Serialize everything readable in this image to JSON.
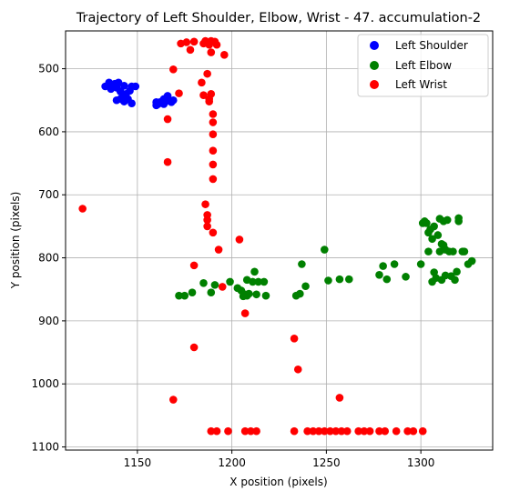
{
  "chart_data": {
    "type": "scatter",
    "title": "Trajectory of Left Shoulder, Elbow, Wrist - 47. accumulation-2",
    "xlabel": "X position (pixels)",
    "ylabel": "Y position (pixels)",
    "xlim": [
      1112,
      1338
    ],
    "ylim": [
      1105,
      440
    ],
    "y_inverted": true,
    "grid": true,
    "legend_position": "top-right",
    "x_ticks": [
      1150,
      1200,
      1250,
      1300
    ],
    "y_ticks": [
      500,
      600,
      700,
      800,
      900,
      1000,
      1100
    ],
    "series": [
      {
        "name": "Left Shoulder",
        "color": "#0000ff",
        "points": [
          [
            1133,
            528
          ],
          [
            1135,
            522
          ],
          [
            1136,
            532
          ],
          [
            1137,
            526
          ],
          [
            1138,
            524
          ],
          [
            1139,
            530
          ],
          [
            1140,
            522
          ],
          [
            1141,
            536
          ],
          [
            1139,
            550
          ],
          [
            1141,
            548
          ],
          [
            1142,
            545
          ],
          [
            1143,
            552
          ],
          [
            1143,
            527
          ],
          [
            1144,
            540
          ],
          [
            1145,
            548
          ],
          [
            1146,
            535
          ],
          [
            1147,
            528
          ],
          [
            1147,
            555
          ],
          [
            1149,
            528
          ],
          [
            1160,
            558
          ],
          [
            1160,
            553
          ],
          [
            1161,
            556
          ],
          [
            1162,
            553
          ],
          [
            1164,
            548
          ],
          [
            1164,
            556
          ],
          [
            1165,
            552
          ],
          [
            1166,
            543
          ],
          [
            1167,
            550
          ],
          [
            1168,
            553
          ],
          [
            1169,
            550
          ]
        ]
      },
      {
        "name": "Left Elbow",
        "color": "#008000",
        "points": [
          [
            1172,
            860
          ],
          [
            1175,
            860
          ],
          [
            1179,
            855
          ],
          [
            1185,
            840
          ],
          [
            1189,
            855
          ],
          [
            1191,
            843
          ],
          [
            1199,
            838
          ],
          [
            1203,
            848
          ],
          [
            1205,
            852
          ],
          [
            1206,
            861
          ],
          [
            1207,
            858
          ],
          [
            1208,
            860
          ],
          [
            1208,
            835
          ],
          [
            1209,
            857
          ],
          [
            1211,
            838
          ],
          [
            1212,
            822
          ],
          [
            1213,
            858
          ],
          [
            1214,
            838
          ],
          [
            1217,
            838
          ],
          [
            1218,
            860
          ],
          [
            1234,
            860
          ],
          [
            1236,
            857
          ],
          [
            1237,
            810
          ],
          [
            1239,
            845
          ],
          [
            1249,
            787
          ],
          [
            1251,
            836
          ],
          [
            1257,
            834
          ],
          [
            1262,
            834
          ],
          [
            1278,
            827
          ],
          [
            1280,
            813
          ],
          [
            1282,
            834
          ],
          [
            1286,
            810
          ],
          [
            1292,
            830
          ],
          [
            1300,
            810
          ],
          [
            1301,
            745
          ],
          [
            1302,
            742
          ],
          [
            1303,
            745
          ],
          [
            1304,
            760
          ],
          [
            1304,
            790
          ],
          [
            1305,
            755
          ],
          [
            1306,
            770
          ],
          [
            1306,
            838
          ],
          [
            1307,
            823
          ],
          [
            1307,
            750
          ],
          [
            1308,
            832
          ],
          [
            1309,
            764
          ],
          [
            1310,
            738
          ],
          [
            1310,
            790
          ],
          [
            1311,
            778
          ],
          [
            1311,
            835
          ],
          [
            1312,
            780
          ],
          [
            1312,
            742
          ],
          [
            1313,
            828
          ],
          [
            1313,
            787
          ],
          [
            1314,
            740
          ],
          [
            1315,
            790
          ],
          [
            1316,
            829
          ],
          [
            1317,
            790
          ],
          [
            1318,
            835
          ],
          [
            1319,
            822
          ],
          [
            1320,
            737
          ],
          [
            1320,
            742
          ],
          [
            1322,
            790
          ],
          [
            1323,
            790
          ],
          [
            1325,
            810
          ],
          [
            1327,
            805
          ]
        ]
      },
      {
        "name": "Left Wrist",
        "color": "#ff0000",
        "points": [
          [
            1121,
            722
          ],
          [
            1166,
            580
          ],
          [
            1166,
            648
          ],
          [
            1169,
            501
          ],
          [
            1169,
            1025
          ],
          [
            1172,
            539
          ],
          [
            1173,
            460
          ],
          [
            1176,
            458
          ],
          [
            1178,
            470
          ],
          [
            1180,
            457
          ],
          [
            1180,
            812
          ],
          [
            1180,
            942
          ],
          [
            1184,
            522
          ],
          [
            1185,
            542
          ],
          [
            1185,
            460
          ],
          [
            1186,
            456
          ],
          [
            1186,
            715
          ],
          [
            1187,
            732
          ],
          [
            1187,
            740
          ],
          [
            1187,
            750
          ],
          [
            1187,
            508
          ],
          [
            1188,
            462
          ],
          [
            1188,
            548
          ],
          [
            1188,
            552
          ],
          [
            1189,
            456
          ],
          [
            1189,
            474
          ],
          [
            1189,
            540
          ],
          [
            1189,
            1075
          ],
          [
            1190,
            572
          ],
          [
            1190,
            585
          ],
          [
            1190,
            604
          ],
          [
            1190,
            630
          ],
          [
            1190,
            652
          ],
          [
            1190,
            675
          ],
          [
            1190,
            760
          ],
          [
            1191,
            457
          ],
          [
            1192,
            462
          ],
          [
            1193,
            787
          ],
          [
            1195,
            846
          ],
          [
            1196,
            478
          ],
          [
            1192,
            1075
          ],
          [
            1198,
            1075
          ],
          [
            1204,
            771
          ],
          [
            1207,
            888
          ],
          [
            1207,
            1075
          ],
          [
            1210,
            1075
          ],
          [
            1213,
            1075
          ],
          [
            1233,
            928
          ],
          [
            1233,
            1075
          ],
          [
            1235,
            977
          ],
          [
            1240,
            1075
          ],
          [
            1243,
            1075
          ],
          [
            1246,
            1075
          ],
          [
            1249,
            1075
          ],
          [
            1252,
            1075
          ],
          [
            1255,
            1075
          ],
          [
            1257,
            1022
          ],
          [
            1258,
            1075
          ],
          [
            1261,
            1075
          ],
          [
            1267,
            1075
          ],
          [
            1270,
            1075
          ],
          [
            1273,
            1075
          ],
          [
            1278,
            1075
          ],
          [
            1281,
            1075
          ],
          [
            1287,
            1075
          ],
          [
            1293,
            1075
          ],
          [
            1296,
            1075
          ],
          [
            1301,
            1075
          ]
        ]
      }
    ]
  }
}
